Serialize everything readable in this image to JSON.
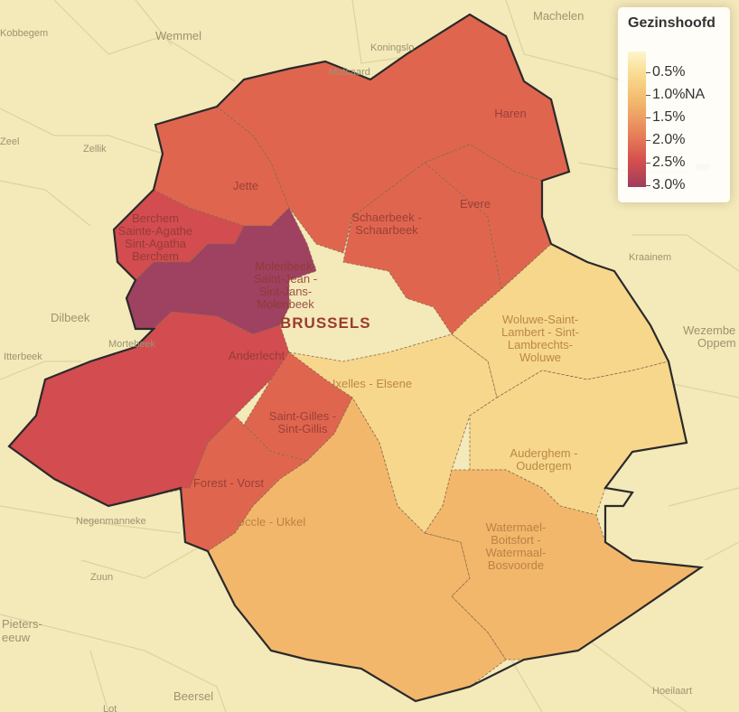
{
  "legend": {
    "title": "Gezinshoofd",
    "values": [
      "0.5%",
      "1.0%",
      "1.5%",
      "2.0%",
      "2.5%",
      "3.0%"
    ],
    "na_label": "NA"
  },
  "city_label": "BRUSSELS",
  "neighbor_places": [
    {
      "name": "Kobbegem"
    },
    {
      "name": "Wemmel"
    },
    {
      "name": "Machelen"
    },
    {
      "name": "Koningslo"
    },
    {
      "name": "Mutsaard"
    },
    {
      "name": "Zellik"
    },
    {
      "name": "Zeel"
    },
    {
      "name": "Dilbeek"
    },
    {
      "name": "Itterbeek"
    },
    {
      "name": "Negenmanneke"
    },
    {
      "name": "Zuun"
    },
    {
      "name": "Pieters-"
    },
    {
      "name": "eeuw"
    },
    {
      "name": "Beersel"
    },
    {
      "name": "Lot"
    },
    {
      "name": "Kraainem"
    },
    {
      "name": "Wezembe"
    },
    {
      "name": "Oppem"
    },
    {
      "name": "Hoeilaart"
    },
    {
      "name": "em"
    },
    {
      "name": "Mortebeek"
    }
  ],
  "communes": [
    {
      "lines": [
        "Haren"
      ],
      "value_pct": 2.3
    },
    {
      "lines": [
        "Jette"
      ],
      "value_pct": 2.2
    },
    {
      "lines": [
        "Berchem",
        "Sainte-Agathe",
        "Sint-Agatha",
        "Berchem"
      ],
      "value_pct": 2.6
    },
    {
      "lines": [
        "Molenbeek-",
        "Saint-Jean -",
        "Sint-Jans-",
        "Molenbeek"
      ],
      "value_pct": 3.0
    },
    {
      "lines": [
        "Schaerbeek -",
        "Schaarbeek"
      ],
      "value_pct": 2.1
    },
    {
      "lines": [
        "Evere"
      ],
      "value_pct": 2.0
    },
    {
      "lines": [
        "Woluwe-Saint-",
        "Lambert - Sint-",
        "Lambrechts-",
        "Woluwe"
      ],
      "value_pct": 1.3
    },
    {
      "lines": [
        "Anderlecht"
      ],
      "value_pct": 2.5
    },
    {
      "lines": [
        "Ixelles - Elsene"
      ],
      "value_pct": 1.3
    },
    {
      "lines": [
        "Saint-Gilles -",
        "Sint-Gillis"
      ],
      "value_pct": 2.0
    },
    {
      "lines": [
        "Auderghem -",
        "Oudergem"
      ],
      "value_pct": 1.2
    },
    {
      "lines": [
        "Forest - Vorst"
      ],
      "value_pct": 2.1
    },
    {
      "lines": [
        "Uccle - Ukkel"
      ],
      "value_pct": 1.5
    },
    {
      "lines": [
        "Watermael-",
        "Boitsfort -",
        "Watermaal-",
        "Bosvoorde"
      ],
      "value_pct": 1.6
    }
  ],
  "colors": {
    "background": "#f4e9b9",
    "v3_0": "#9f4160",
    "v2_5": "#d24c50",
    "v2_0": "#e0654f",
    "v1_5": "#f3b76c",
    "v1_2": "#f7d78c"
  }
}
